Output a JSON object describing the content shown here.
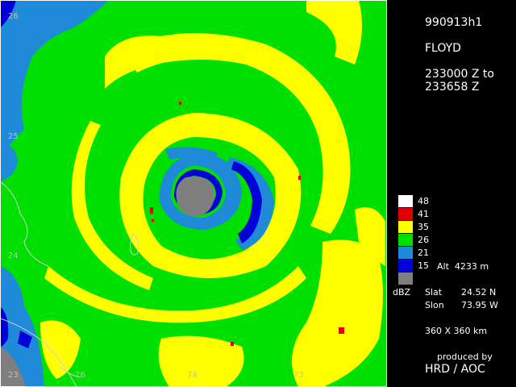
{
  "map": {
    "lat_labels": [
      "26",
      "25",
      "24",
      "23"
    ],
    "lon_labels": [
      "76",
      "74",
      "73"
    ],
    "colors": {
      "background": "#00e000",
      "yellow": "#ffff00",
      "light_blue": "#1f8ad8",
      "dark_blue": "#0000d8",
      "gray": "#7f7f7f",
      "red": "#e00000",
      "coast": "#d0d0d0"
    }
  },
  "panel": {
    "file_id": "990913h1",
    "storm_name": "FLOYD",
    "time_start": "233000 Z to",
    "time_end": "233658 Z",
    "legend": [
      {
        "label": "48",
        "color": "#ffffff"
      },
      {
        "label": "41",
        "color": "#e00000"
      },
      {
        "label": "35",
        "color": "#ffff00"
      },
      {
        "label": "26",
        "color": "#00e000"
      },
      {
        "label": "21",
        "color": "#1f8ad8"
      },
      {
        "label": "15",
        "color": "#0000d8"
      },
      {
        "label": "",
        "color": "#7f7f7f"
      }
    ],
    "alt_label": "Alt  4233 m",
    "unit_label": "dBZ",
    "slat_label": "Slat",
    "slat_value": "24.52 N",
    "slon_label": "Slon",
    "slon_value": "73.95 W",
    "size_label": "360 X 360 km",
    "produced_by": "produced by",
    "producer": "HRD / AOC"
  }
}
